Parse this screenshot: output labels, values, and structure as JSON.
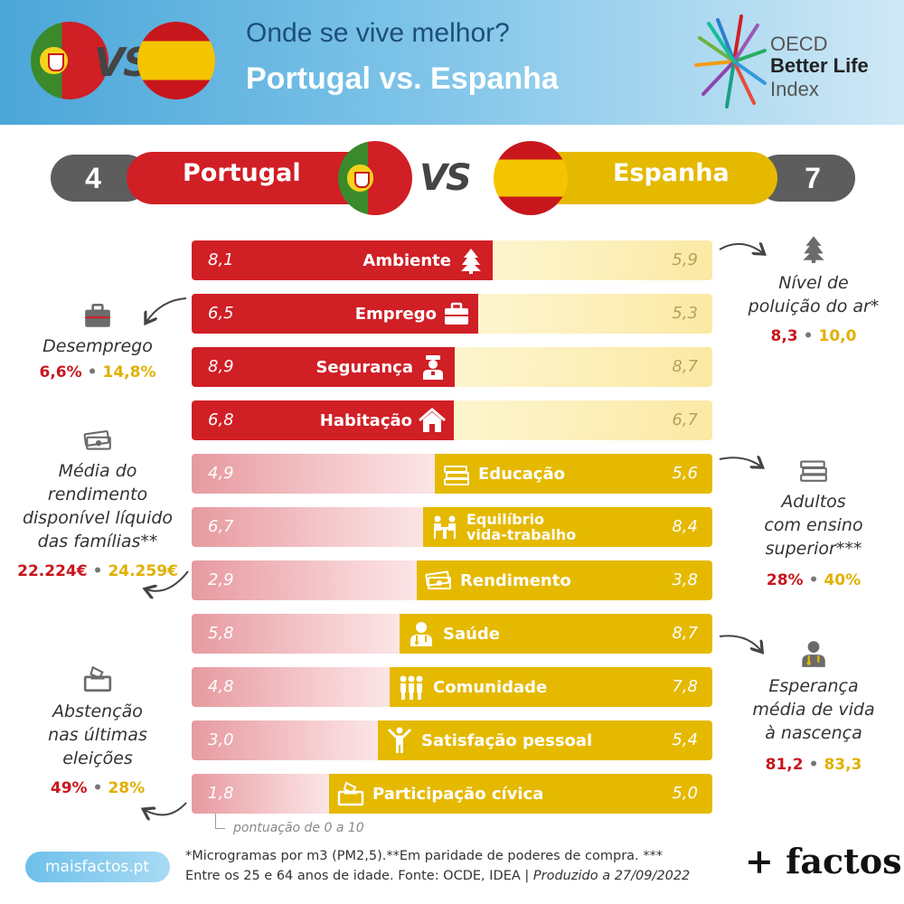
{
  "header": {
    "title_line1": "Onde se vive melhor?",
    "title_line2": "Portugal vs. Espanha",
    "vs": "VS",
    "oecd_line1": "OECD",
    "oecd_line2": "Better Life",
    "oecd_line3": "Index"
  },
  "scoreboard": {
    "portugal_score": "4",
    "portugal_label": "Portugal",
    "vs": "VS",
    "spain_label": "Espanha",
    "spain_score": "7"
  },
  "colors": {
    "portugal": "#d01f25",
    "spain": "#e5b900"
  },
  "chart_data": {
    "type": "bar",
    "categories": [
      "Ambiente",
      "Emprego",
      "Segurança",
      "Habitação",
      "Educação",
      "Equilíbrio vida-trabalho",
      "Rendimento",
      "Saúde",
      "Comunidade",
      "Satisfação pessoal",
      "Participação cívica"
    ],
    "series": [
      {
        "name": "Portugal",
        "values": [
          8.1,
          6.5,
          8.9,
          6.8,
          4.9,
          6.7,
          2.9,
          5.8,
          4.8,
          3.0,
          1.8
        ]
      },
      {
        "name": "Espanha",
        "values": [
          5.9,
          5.3,
          8.7,
          6.7,
          5.6,
          8.4,
          3.8,
          8.7,
          7.8,
          5.4,
          5.0
        ]
      }
    ],
    "value_labels_pt": [
      "8,1",
      "6,5",
      "8,9",
      "6,8",
      "4,9",
      "6,7",
      "2,9",
      "5,8",
      "4,8",
      "3,0",
      "1,8"
    ],
    "value_labels_es": [
      "5,9",
      "5,3",
      "8,7",
      "6,7",
      "5,6",
      "8,4",
      "3,8",
      "8,7",
      "7,8",
      "5,4",
      "5,0"
    ],
    "winner": [
      "pt",
      "pt",
      "pt",
      "pt",
      "es",
      "es",
      "es",
      "es",
      "es",
      "es",
      "es"
    ],
    "icons": [
      "tree-icon",
      "briefcase-icon",
      "police-officer-icon",
      "house-icon",
      "books-icon",
      "work-life-icon",
      "money-icon",
      "doctor-icon",
      "community-icon",
      "person-cheering-icon",
      "ballot-box-icon"
    ],
    "category_line1": [
      "Ambiente",
      "Emprego",
      "Segurança",
      "Habitação",
      "Educação",
      "Equilíbrio",
      "Rendimento",
      "Saúde",
      "Comunidade",
      "Satisfação pessoal",
      "Participação cívica"
    ],
    "category_line2": [
      "",
      "",
      "",
      "",
      "",
      "vida-trabalho",
      "",
      "",
      "",
      "",
      ""
    ],
    "scale_note": "pontuação de 0 a 10"
  },
  "annotations": {
    "air": {
      "title_lines": [
        "Nível de",
        "poluição do ar*"
      ],
      "pt": "8,3",
      "es": "10,0",
      "icon": "tree-icon"
    },
    "unemployment": {
      "title_lines": [
        "Desemprego"
      ],
      "pt": "6,6%",
      "es": "14,8%",
      "icon": "briefcase-icon"
    },
    "income": {
      "title_lines": [
        "Média do",
        "rendimento",
        "disponível líquido",
        "das famílias**"
      ],
      "pt": "22.224€",
      "es": "24.259€",
      "icon": "money-icon"
    },
    "education": {
      "title_lines": [
        "Adultos",
        "com ensino",
        "superior***"
      ],
      "pt": "28%",
      "es": "40%",
      "icon": "books-icon"
    },
    "life": {
      "title_lines": [
        "Esperança",
        "média de vida",
        "à nascença"
      ],
      "pt": "81,2",
      "es": "83,3",
      "icon": "doctor-icon"
    },
    "abstention": {
      "title_lines": [
        "Abstenção",
        "nas últimas",
        "eleições"
      ],
      "pt": "49%",
      "es": "28%",
      "icon": "ballot-box-icon"
    },
    "separator": "•"
  },
  "footer": {
    "site": "maisfactos.pt",
    "note_line1": "*Microgramas por m3 (PM2,5).**Em paridade de poderes de compra. ***",
    "note_line2": "Entre os 25 e 64 anos de idade. Fonte: OCDE, IDEA | ",
    "note_produced": "Produzido a 27/09/2022",
    "brand": "+ factos"
  }
}
